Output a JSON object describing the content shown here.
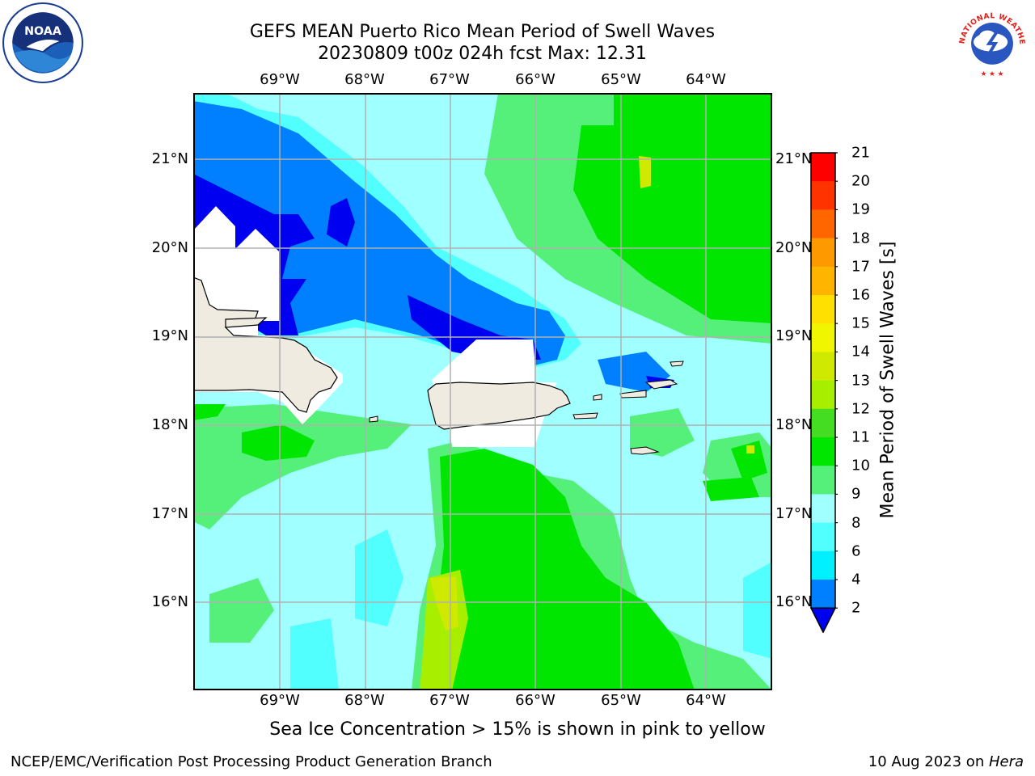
{
  "title": {
    "line1": "GEFS MEAN Puerto Rico Mean Period of Swell Waves",
    "line2": "20230809 t00z 024h fcst   Max: 12.31"
  },
  "logos": {
    "left": {
      "icon": "noaa-logo-icon",
      "text": "NOAA",
      "ring_text": "NATIONAL OCEANIC AND ATMOSPHERIC ADMINISTRATION · U.S. DEPARTMENT OF COMMERCE"
    },
    "right": {
      "icon": "nws-logo-icon",
      "ring_text": "NATIONAL WEATHER SERVICE"
    }
  },
  "map": {
    "lon_labels": [
      "69°W",
      "68°W",
      "67°W",
      "66°W",
      "65°W",
      "64°W"
    ],
    "lat_labels": [
      "21°N",
      "20°N",
      "19°N",
      "18°N",
      "17°N",
      "16°N"
    ],
    "land_color": "#efebe0",
    "grid_color": "#b0b0b0"
  },
  "colorbar": {
    "label": "Mean Period of Swell Waves [s]",
    "ticks": [
      "21",
      "20",
      "19",
      "18",
      "17",
      "16",
      "15",
      "14",
      "13",
      "12",
      "11",
      "10",
      "9",
      "8",
      "6",
      "4",
      "2"
    ],
    "colors": [
      "#ff0000",
      "#ff3300",
      "#ff6600",
      "#ff9900",
      "#ffb400",
      "#ffe000",
      "#f0f500",
      "#cfea00",
      "#a8ee00",
      "#44dd22",
      "#00e600",
      "#55f07a",
      "#a0ffff",
      "#52ffff",
      "#00f0ff",
      "#0080ff",
      "#0000f0"
    ],
    "under_color": "#0000f0"
  },
  "subtitle": "Sea Ice Concentration > 15% is shown in pink to yellow",
  "footer": {
    "left": "NCEP/EMC/Verification Post Processing Product Generation Branch",
    "right_prefix": "10 Aug 2023 on ",
    "right_host": "Hera"
  }
}
